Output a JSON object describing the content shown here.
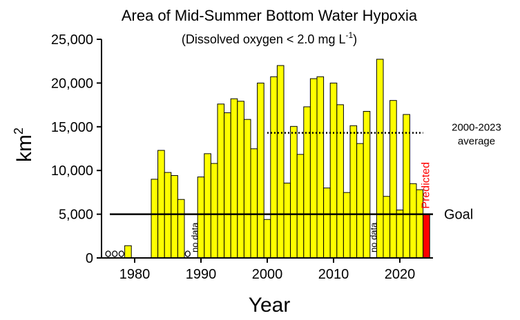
{
  "chart_data": {
    "type": "bar",
    "title": "Area of Mid-Summer Bottom Water Hypoxia",
    "subtitle": "(Dissolved oxygen < 2.0 mg L",
    "subtitle_sup": "-1",
    "subtitle_end": ")",
    "x_label": "Year",
    "y_label": "km",
    "y_label_sup": "2",
    "x": [
      1979,
      1980,
      1981,
      1982,
      1983,
      1984,
      1985,
      1986,
      1987,
      1988,
      1989,
      1990,
      1991,
      1992,
      1993,
      1994,
      1995,
      1996,
      1997,
      1998,
      1999,
      2000,
      2001,
      2002,
      2003,
      2004,
      2005,
      2006,
      2007,
      2008,
      2009,
      2010,
      2011,
      2012,
      2013,
      2014,
      2015,
      2016,
      2017,
      2018,
      2019,
      2020,
      2021,
      2022,
      2023
    ],
    "values": [
      1400,
      null,
      null,
      null,
      9000,
      12300,
      9774,
      9422,
      6688,
      null,
      null,
      9260,
      11920,
      10804,
      17600,
      16600,
      18200,
      17920,
      15840,
      12480,
      20000,
      4400,
      20720,
      22000,
      8560,
      15040,
      11840,
      17280,
      20500,
      20720,
      8000,
      20000,
      17520,
      7480,
      15120,
      13080,
      16760,
      null,
      22720,
      7040,
      18005,
      5480,
      16404,
      8492,
      7800
    ],
    "color": "#ffff00",
    "zero_markers": [
      1976,
      1977,
      1978,
      1988
    ],
    "annotations": [
      {
        "text": "no data",
        "x": 1989
      },
      {
        "text": "no data",
        "x": 2016
      }
    ],
    "predicted": {
      "label": "Predicted",
      "x": 2024,
      "value": 5000,
      "color": "#ff0000"
    },
    "goal": {
      "label": "Goal",
      "value": 5000
    },
    "average": {
      "label_lines": [
        "2000-2023",
        "average"
      ],
      "value": 14300,
      "x_range": [
        2000,
        2023
      ]
    },
    "xlim": [
      1975,
      2025
    ],
    "xticks": [
      1980,
      1990,
      2000,
      2010,
      2020
    ],
    "ylim": [
      0,
      25000
    ],
    "yticks": [
      0,
      {
        "value": 5000,
        "label": "5,000"
      },
      {
        "value": 10000,
        "label": "10,000"
      },
      {
        "value": 15000,
        "label": "15,000"
      },
      {
        "value": 20000,
        "label": "20,000"
      },
      {
        "value": 25000,
        "label": "25,000"
      }
    ]
  }
}
